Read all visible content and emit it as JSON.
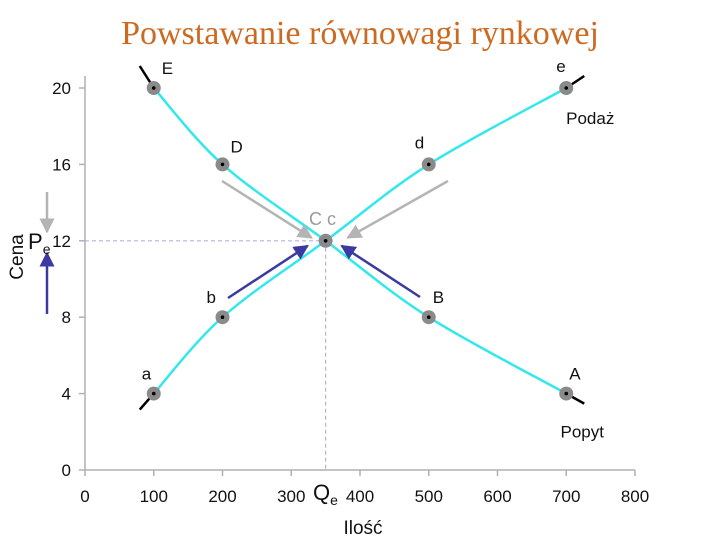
{
  "chart_data": {
    "type": "line",
    "title": "Powstawanie równowagi rynkowej",
    "xlabel": "Ilość",
    "ylabel": "Cena",
    "xlim": [
      0,
      800
    ],
    "ylim": [
      0,
      20
    ],
    "x_ticks": [
      "0",
      "100",
      "200",
      "300",
      "400",
      "500",
      "600",
      "700",
      "800"
    ],
    "y_ticks": [
      "0",
      "4",
      "8",
      "12",
      "16",
      "20"
    ],
    "equilibrium": {
      "x": 350,
      "y": 12,
      "label": "C c",
      "price_symbol": "P",
      "price_sub": "e",
      "qty_symbol": "Q",
      "qty_sub": "e"
    },
    "series": [
      {
        "name": "Popyt",
        "points": [
          {
            "x": 100,
            "y": 20,
            "label": "E"
          },
          {
            "x": 200,
            "y": 16,
            "label": "D"
          },
          {
            "x": 350,
            "y": 12,
            "label": ""
          },
          {
            "x": 500,
            "y": 8,
            "label": "B"
          },
          {
            "x": 700,
            "y": 4,
            "label": "A"
          }
        ]
      },
      {
        "name": "Podaż",
        "points": [
          {
            "x": 100,
            "y": 4,
            "label": "a"
          },
          {
            "x": 200,
            "y": 8,
            "label": "b"
          },
          {
            "x": 350,
            "y": 12,
            "label": ""
          },
          {
            "x": 500,
            "y": 16,
            "label": "d"
          },
          {
            "x": 700,
            "y": 20,
            "label": "e"
          }
        ]
      }
    ],
    "colors": {
      "title": "#cc6a22",
      "curve": "#33e8ec",
      "marker": "#8a8a8a",
      "guide": "#b4b4e6",
      "surplus_arrow": "#b4b4b4",
      "shortage_arrow": "#3a3aa0",
      "axis": "#b0b0b0"
    }
  }
}
